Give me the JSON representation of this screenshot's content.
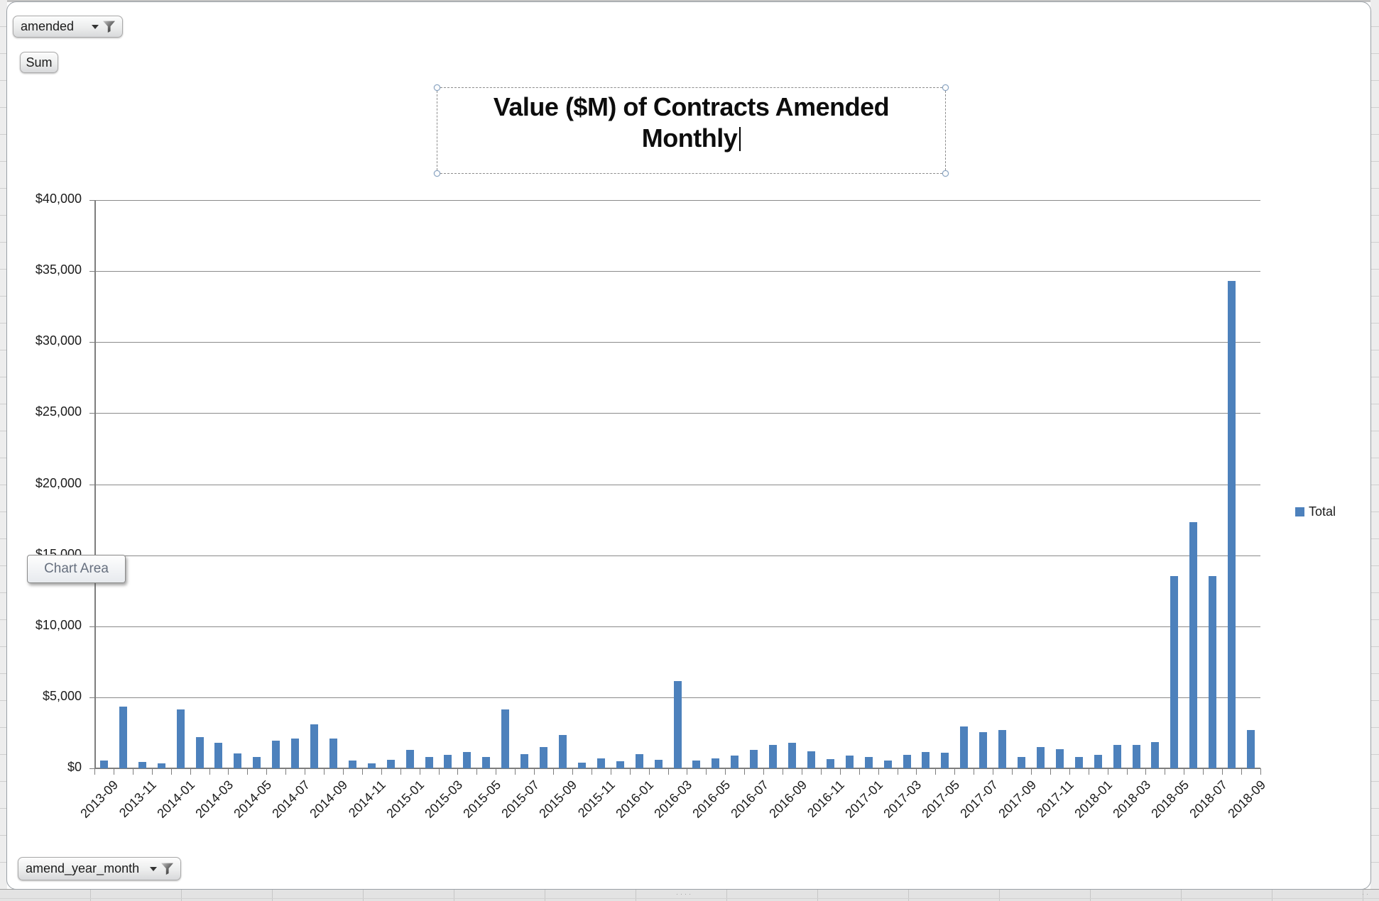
{
  "pivot_filters": {
    "value_field": {
      "label": "amended"
    },
    "aggregation": {
      "label": "Sum"
    },
    "axis_field": {
      "label": "amend_year_month"
    }
  },
  "tooltip": {
    "text": "Chart Area"
  },
  "title": {
    "line1": "Value ($M) of Contracts Amended",
    "line2": "Monthly"
  },
  "legend": {
    "label": "Total",
    "marker_color": "#4d81bc"
  },
  "worksheet_marks": {
    "bottom": "····",
    "bottom_right": "··"
  },
  "chart_data": {
    "type": "bar",
    "title": "Value ($M) of Contracts Amended Monthly",
    "series_name": "Total",
    "bar_color": "#4d81bc",
    "gridline_color": "#8a8a8a",
    "grid": true,
    "legend_position": "right",
    "ylim": [
      0,
      40000
    ],
    "ytick_step": 5000,
    "yaxis_format": "$#,##0",
    "ytick_labels": [
      "$0",
      "$5,000",
      "$10,000",
      "$15,000",
      "$20,000",
      "$25,000",
      "$30,000",
      "$35,000",
      "$40,000"
    ],
    "xlabel_every": 2,
    "categories": [
      "2013-09",
      "2013-10",
      "2013-11",
      "2013-12",
      "2014-01",
      "2014-02",
      "2014-03",
      "2014-04",
      "2014-05",
      "2014-06",
      "2014-07",
      "2014-08",
      "2014-09",
      "2014-10",
      "2014-11",
      "2014-12",
      "2015-01",
      "2015-02",
      "2015-03",
      "2015-04",
      "2015-05",
      "2015-06",
      "2015-07",
      "2015-08",
      "2015-09",
      "2015-10",
      "2015-11",
      "2015-12",
      "2016-01",
      "2016-02",
      "2016-03",
      "2016-04",
      "2016-05",
      "2016-06",
      "2016-07",
      "2016-08",
      "2016-09",
      "2016-10",
      "2016-11",
      "2016-12",
      "2017-01",
      "2017-02",
      "2017-03",
      "2017-04",
      "2017-05",
      "2017-06",
      "2017-07",
      "2017-08",
      "2017-09",
      "2017-10",
      "2017-11",
      "2017-12",
      "2018-01",
      "2018-02",
      "2018-03",
      "2018-04",
      "2018-05",
      "2018-06",
      "2018-07",
      "2018-08",
      "2018-09"
    ],
    "values": [
      550,
      4350,
      465,
      365,
      4150,
      2200,
      1800,
      1050,
      800,
      1950,
      2100,
      3100,
      2100,
      570,
      365,
      580,
      1300,
      800,
      965,
      1165,
      800,
      4150,
      1000,
      1500,
      2350,
      400,
      700,
      500,
      1000,
      580,
      6150,
      565,
      680,
      880,
      1300,
      1665,
      1800,
      1200,
      665,
      880,
      800,
      550,
      950,
      1165,
      1080,
      2950,
      2550,
      2715,
      780,
      1500,
      1365,
      780,
      965,
      1665,
      1665,
      1865,
      13550,
      17350,
      13550,
      34300,
      2715
    ]
  }
}
